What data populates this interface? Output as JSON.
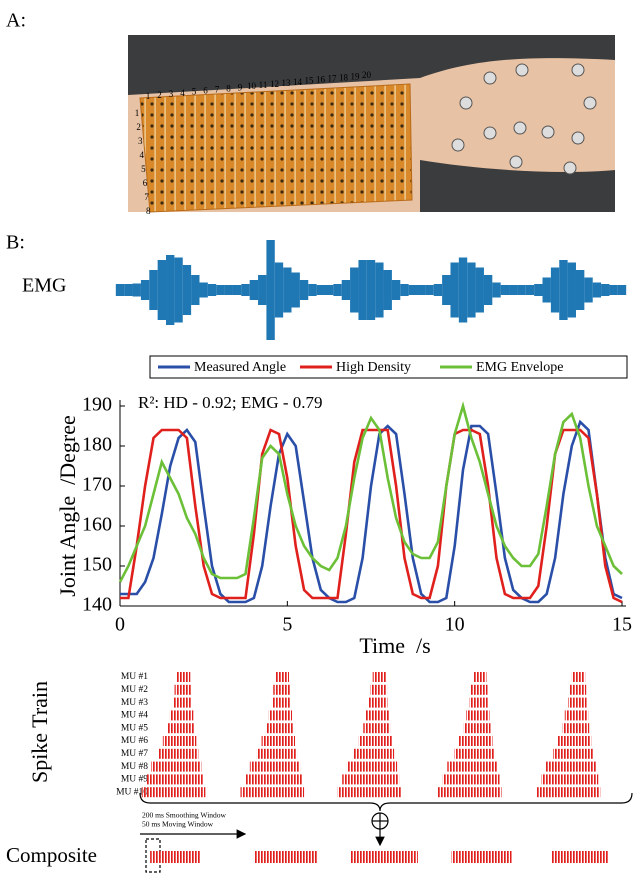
{
  "panels": {
    "a": "A:",
    "b": "B:"
  },
  "photo": {
    "column_labels": [
      "1",
      "2",
      "3",
      "4",
      "5",
      "6",
      "7",
      "8",
      "9",
      "10",
      "11",
      "12",
      "13",
      "14",
      "15",
      "16",
      "17",
      "18",
      "19",
      "20"
    ],
    "row_labels": [
      "1",
      "2",
      "3",
      "4",
      "5",
      "6",
      "7",
      "8"
    ]
  },
  "chart_data": [
    {
      "type": "signal",
      "label": "EMG",
      "color": "#1f77b4",
      "xlim": [
        0,
        15
      ],
      "x": [
        0,
        0.25,
        0.5,
        0.75,
        1,
        1.25,
        1.5,
        1.75,
        2,
        2.25,
        2.5,
        2.75,
        3,
        3.25,
        3.5,
        3.75,
        4,
        4.25,
        4.5,
        4.75,
        5,
        5.25,
        5.5,
        5.75,
        6,
        6.25,
        6.5,
        6.75,
        7,
        7.25,
        7.5,
        7.75,
        8,
        8.25,
        8.5,
        8.75,
        9,
        9.25,
        9.5,
        9.75,
        10,
        10.25,
        10.5,
        10.75,
        11,
        11.25,
        11.5,
        11.75,
        12,
        12.25,
        12.5,
        12.75,
        13,
        13.25,
        13.5,
        13.75,
        14,
        14.25,
        14.5,
        14.75,
        15
      ],
      "values": [
        0.12,
        0.12,
        0.13,
        0.2,
        0.4,
        0.6,
        0.7,
        0.65,
        0.5,
        0.3,
        0.15,
        0.12,
        0.1,
        0.1,
        0.1,
        0.12,
        0.2,
        0.3,
        1.0,
        0.55,
        0.45,
        0.35,
        0.2,
        0.12,
        0.1,
        0.1,
        0.12,
        0.2,
        0.45,
        0.6,
        0.6,
        0.55,
        0.4,
        0.2,
        0.12,
        0.1,
        0.1,
        0.1,
        0.12,
        0.3,
        0.55,
        0.65,
        0.55,
        0.45,
        0.3,
        0.15,
        0.1,
        0.1,
        0.1,
        0.1,
        0.12,
        0.25,
        0.45,
        0.6,
        0.55,
        0.4,
        0.25,
        0.15,
        0.12,
        0.1,
        0.1
      ]
    },
    {
      "type": "line",
      "annotation": "R²: HD - 0.92; EMG - 0.79",
      "xlabel": "Time  /s",
      "ylabel": "Joint Angle  /Degree",
      "xlim": [
        0,
        15
      ],
      "ylim": [
        140,
        190
      ],
      "xticks": [
        0,
        5,
        10,
        15
      ],
      "yticks": [
        140,
        150,
        160,
        170,
        180,
        190
      ],
      "x": [
        0,
        0.25,
        0.5,
        0.75,
        1,
        1.25,
        1.5,
        1.75,
        2,
        2.25,
        2.5,
        2.75,
        3,
        3.25,
        3.5,
        3.75,
        4,
        4.25,
        4.5,
        4.75,
        5,
        5.25,
        5.5,
        5.75,
        6,
        6.25,
        6.5,
        6.75,
        7,
        7.25,
        7.5,
        7.75,
        8,
        8.25,
        8.5,
        8.75,
        9,
        9.25,
        9.5,
        9.75,
        10,
        10.25,
        10.5,
        10.75,
        11,
        11.25,
        11.5,
        11.75,
        12,
        12.25,
        12.5,
        12.75,
        13,
        13.25,
        13.5,
        13.75,
        14,
        14.25,
        14.5,
        14.75,
        15
      ],
      "series": [
        {
          "name": "Measured Angle",
          "color": "#2a4fa8",
          "values": [
            143,
            143,
            143,
            146,
            152,
            163,
            175,
            182,
            184,
            181,
            165,
            150,
            143,
            141,
            141,
            141,
            142,
            150,
            165,
            178,
            183,
            180,
            166,
            152,
            144,
            142,
            141,
            141,
            142,
            152,
            170,
            183,
            185,
            183,
            168,
            152,
            143,
            141,
            141,
            142,
            155,
            174,
            185,
            185,
            183,
            168,
            152,
            144,
            142,
            141,
            141,
            143,
            152,
            168,
            180,
            186,
            184,
            168,
            152,
            143,
            142
          ]
        },
        {
          "name": "High Density",
          "color": "#e0201c",
          "values": [
            142,
            142,
            155,
            170,
            182,
            184,
            184,
            184,
            182,
            165,
            150,
            143,
            142,
            142,
            142,
            142,
            158,
            178,
            184,
            183,
            172,
            155,
            144,
            142,
            142,
            142,
            142,
            158,
            176,
            184,
            184,
            184,
            184,
            170,
            152,
            143,
            142,
            142,
            150,
            170,
            183,
            184,
            184,
            183,
            170,
            152,
            143,
            142,
            142,
            142,
            145,
            160,
            178,
            184,
            184,
            184,
            182,
            168,
            150,
            142,
            141
          ]
        },
        {
          "name": "EMG Envelope",
          "color": "#6cc038",
          "values": [
            146,
            150,
            155,
            160,
            168,
            176,
            172,
            168,
            162,
            158,
            152,
            148,
            147,
            147,
            147,
            148,
            162,
            177,
            180,
            178,
            168,
            160,
            155,
            152,
            150,
            149,
            152,
            160,
            172,
            182,
            187,
            184,
            172,
            162,
            156,
            153,
            152,
            152,
            156,
            170,
            183,
            190,
            182,
            176,
            168,
            160,
            155,
            152,
            150,
            150,
            153,
            165,
            178,
            186,
            188,
            182,
            170,
            160,
            155,
            150,
            148
          ]
        }
      ]
    },
    {
      "type": "raster",
      "ylabel": "Spike Train",
      "color": "#e0201c",
      "xlim": [
        0,
        15
      ],
      "units": [
        {
          "name": "MU #1",
          "bursts": [
            [
              1.7,
              2.1
            ],
            [
              4.65,
              5.05
            ],
            [
              7.55,
              7.95
            ],
            [
              10.55,
              10.95
            ],
            [
              13.5,
              13.9
            ]
          ]
        },
        {
          "name": "MU #2",
          "bursts": [
            [
              1.63,
              2.13
            ],
            [
              4.58,
              5.08
            ],
            [
              7.48,
              7.98
            ],
            [
              10.48,
              10.98
            ],
            [
              13.43,
              13.93
            ]
          ]
        },
        {
          "name": "MU #3",
          "bursts": [
            [
              1.59,
              2.14
            ],
            [
              4.54,
              5.09
            ],
            [
              7.44,
              7.99
            ],
            [
              10.44,
              10.99
            ],
            [
              13.39,
              13.94
            ]
          ]
        },
        {
          "name": "MU #4",
          "bursts": [
            [
              1.49,
              2.19
            ],
            [
              4.44,
              5.14
            ],
            [
              7.34,
              8.04
            ],
            [
              10.34,
              11.04
            ],
            [
              13.29,
              13.99
            ]
          ]
        },
        {
          "name": "MU #5",
          "bursts": [
            [
              1.42,
              2.22
            ],
            [
              4.37,
              5.17
            ],
            [
              7.27,
              8.07
            ],
            [
              10.27,
              11.07
            ],
            [
              13.22,
              14.02
            ]
          ]
        },
        {
          "name": "MU #6",
          "bursts": [
            [
              1.28,
              2.28
            ],
            [
              4.23,
              5.23
            ],
            [
              7.13,
              8.13
            ],
            [
              10.13,
              11.13
            ],
            [
              13.08,
              14.08
            ]
          ]
        },
        {
          "name": "MU #7",
          "bursts": [
            [
              1.14,
              2.34
            ],
            [
              4.09,
              5.29
            ],
            [
              6.99,
              8.19
            ],
            [
              9.99,
              11.19
            ],
            [
              12.94,
              14.14
            ]
          ]
        },
        {
          "name": "MU #8",
          "bursts": [
            [
              0.93,
              2.43
            ],
            [
              3.88,
              5.38
            ],
            [
              6.78,
              8.28
            ],
            [
              9.78,
              11.28
            ],
            [
              12.73,
              14.23
            ]
          ]
        },
        {
          "name": "MU #9",
          "bursts": [
            [
              0.79,
              2.49
            ],
            [
              3.74,
              5.44
            ],
            [
              6.64,
              8.34
            ],
            [
              9.64,
              11.34
            ],
            [
              12.59,
              14.29
            ]
          ]
        },
        {
          "name": "MU #10",
          "bursts": [
            [
              0.65,
              2.55
            ],
            [
              3.6,
              5.5
            ],
            [
              6.5,
              8.4
            ],
            [
              9.5,
              11.4
            ],
            [
              12.45,
              14.35
            ]
          ]
        }
      ],
      "window_labels": [
        "200 ms Smoothing Window",
        "50 ms Moving Window"
      ],
      "composite": {
        "name": "Composite",
        "bursts": [
          [
            0.9,
            2.4
          ],
          [
            4.0,
            5.9
          ],
          [
            6.9,
            8.9
          ],
          [
            9.9,
            11.7
          ],
          [
            12.9,
            14.6
          ]
        ]
      }
    }
  ]
}
